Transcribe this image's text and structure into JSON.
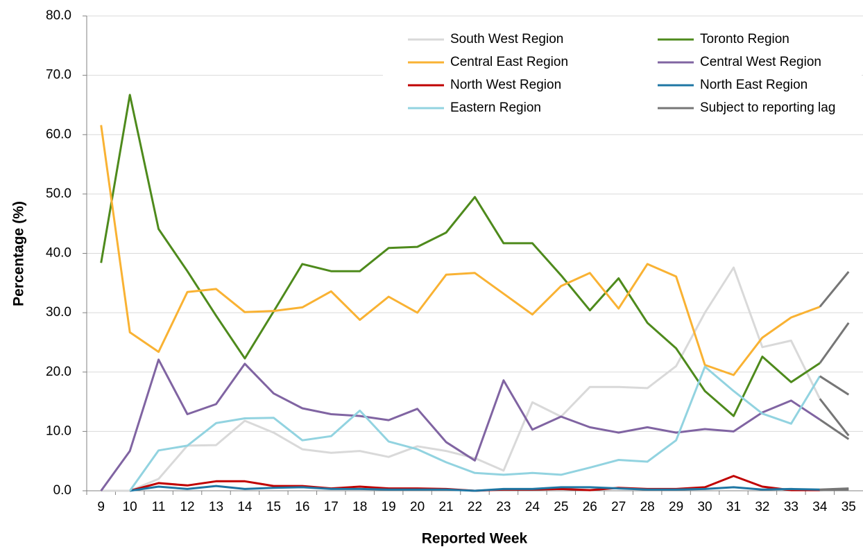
{
  "chart_data": {
    "type": "line",
    "x_label": "Reported Week",
    "y_label": "Percentage (%)",
    "categories": [
      "9",
      "10",
      "11",
      "12",
      "13",
      "14",
      "15",
      "16",
      "17",
      "18",
      "19",
      "20",
      "21",
      "22",
      "23",
      "24",
      "25",
      "26",
      "27",
      "28",
      "29",
      "30",
      "31",
      "32",
      "33",
      "34",
      "35"
    ],
    "ylim": [
      0,
      80
    ],
    "yticks": [
      {
        "value": 0,
        "label": "0.0"
      },
      {
        "value": 10,
        "label": "10.0"
      },
      {
        "value": 20,
        "label": "20.0"
      },
      {
        "value": 30,
        "label": "30.0"
      },
      {
        "value": 40,
        "label": "40.0"
      },
      {
        "value": 50,
        "label": "50.0"
      },
      {
        "value": 60,
        "label": "60.0"
      },
      {
        "value": 70,
        "label": "70.0"
      },
      {
        "value": 80,
        "label": "80.0"
      }
    ],
    "grid": true,
    "legend": "top-right",
    "reporting_lag": {
      "name": "Subject to reporting lag",
      "color": "#767676",
      "lag_points": 2
    },
    "series": [
      {
        "name": "South West Region",
        "color": "#d9d9d9",
        "values": [
          0,
          0,
          2,
          7.6,
          7.7,
          11.8,
          9.8,
          7.0,
          6.4,
          6.7,
          5.7,
          7.5,
          6.7,
          5.5,
          3.4,
          14.9,
          12.5,
          17.5,
          17.5,
          17.3,
          21.0,
          30.0,
          37.6,
          24.2,
          25.3,
          15.5,
          9.3
        ]
      },
      {
        "name": "Toronto Region",
        "color": "#4e8a1c",
        "values": [
          38.4,
          66.7,
          44.1,
          37.0,
          29.5,
          22.3,
          30.2,
          38.2,
          37.0,
          37.0,
          40.9,
          41.1,
          43.5,
          49.5,
          41.7,
          41.7,
          36.3,
          30.4,
          35.8,
          28.3,
          24.0,
          16.8,
          12.6,
          22.6,
          18.3,
          21.5,
          28.3
        ]
      },
      {
        "name": "Central East Region",
        "color": "#f9b233",
        "values": [
          61.6,
          26.7,
          23.4,
          33.5,
          34.0,
          30.1,
          30.3,
          30.9,
          33.6,
          28.8,
          32.7,
          30.0,
          36.4,
          36.7,
          33.2,
          29.7,
          34.5,
          36.7,
          30.7,
          38.2,
          36.1,
          21.2,
          19.5,
          25.8,
          29.2,
          31.0,
          36.9
        ]
      },
      {
        "name": "Central West Region",
        "color": "#8064a2",
        "values": [
          0,
          6.7,
          22.1,
          12.9,
          14.6,
          21.4,
          16.4,
          13.9,
          12.9,
          12.6,
          11.9,
          13.8,
          8.2,
          5.1,
          18.6,
          10.3,
          12.5,
          10.7,
          9.8,
          10.7,
          9.8,
          10.4,
          10.0,
          13.2,
          15.2,
          12.0,
          8.7
        ]
      },
      {
        "name": "North West Region",
        "color": "#c00000",
        "values": [
          null,
          0,
          1.3,
          0.9,
          1.6,
          1.6,
          0.8,
          0.8,
          0.4,
          0.7,
          0.4,
          0.4,
          0.3,
          0,
          0.2,
          0.2,
          0.3,
          0.1,
          0.5,
          0.3,
          0.3,
          0.6,
          2.5,
          0.7,
          0.1,
          0.1,
          0.2
        ]
      },
      {
        "name": "North East Region",
        "color": "#1f77a4",
        "values": [
          null,
          0,
          0.7,
          0.3,
          0.8,
          0.3,
          0.5,
          0.6,
          0.3,
          0.3,
          0.2,
          0.2,
          0.2,
          0,
          0.3,
          0.3,
          0.6,
          0.6,
          0.4,
          0.2,
          0.2,
          0.3,
          0.6,
          0.2,
          0.3,
          0.2,
          0.4
        ]
      },
      {
        "name": "Eastern Region",
        "color": "#92d3e0",
        "values": [
          null,
          0,
          6.8,
          7.6,
          11.4,
          12.2,
          12.3,
          8.5,
          9.2,
          13.5,
          8.3,
          7.0,
          4.8,
          3.0,
          2.7,
          3.0,
          2.7,
          3.9,
          5.2,
          4.9,
          8.5,
          20.9,
          16.8,
          13.0,
          11.3,
          19.3,
          16.2
        ]
      }
    ]
  }
}
